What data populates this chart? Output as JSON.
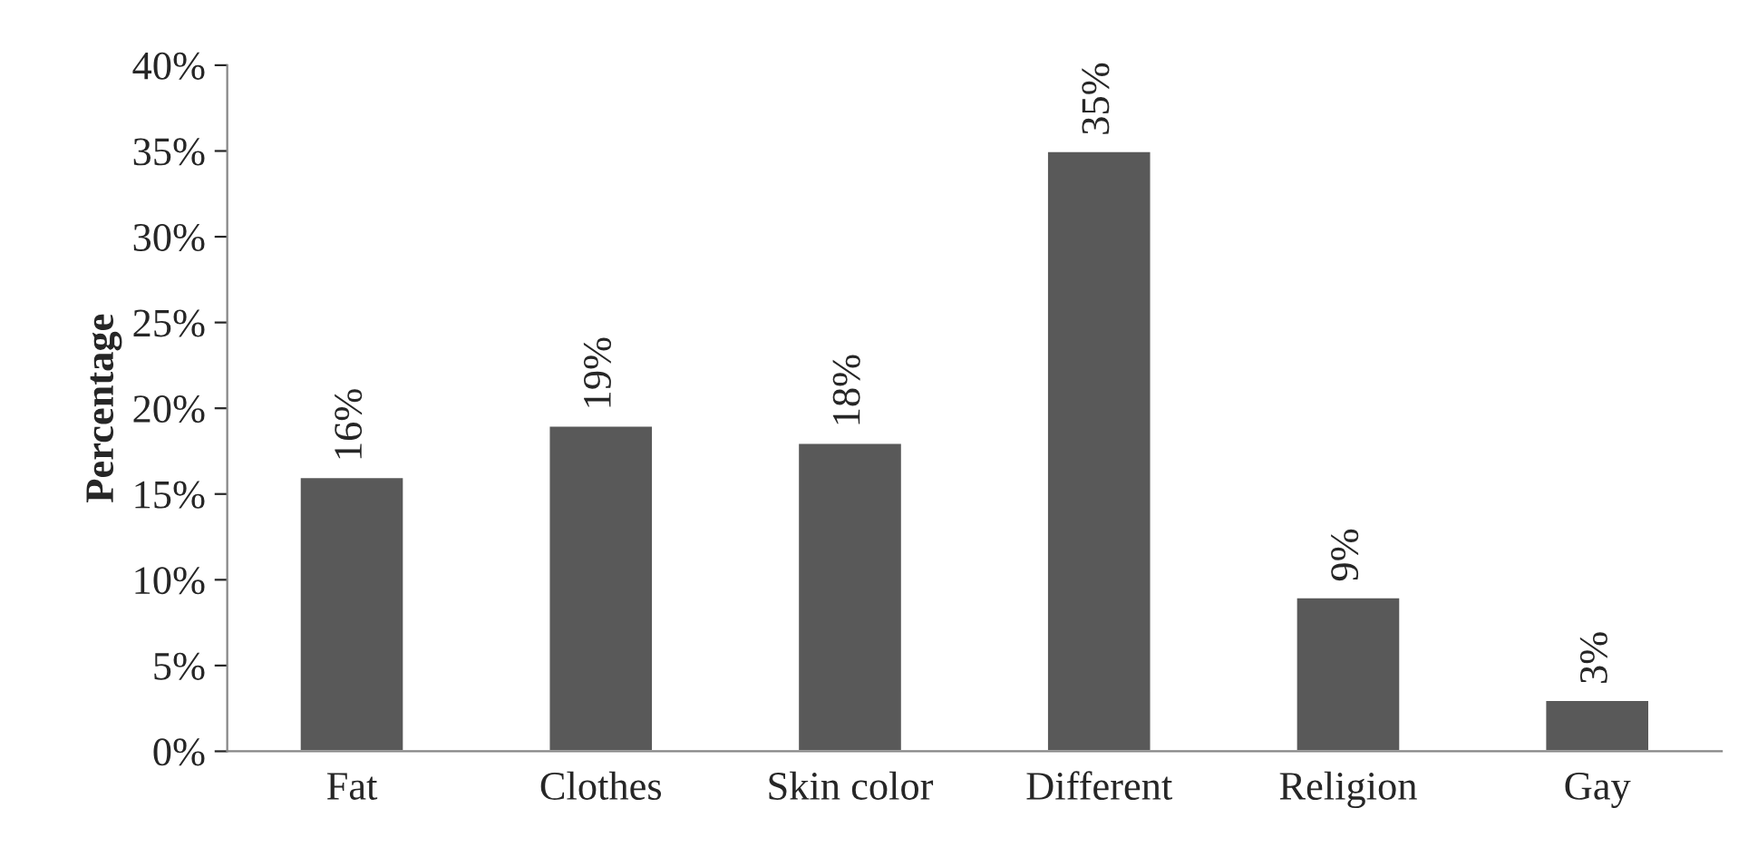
{
  "chart_data": {
    "type": "bar",
    "ylabel": "Percentage",
    "categories": [
      "Fat",
      "Clothes",
      "Skin color",
      "Different",
      "Religion",
      "Gay"
    ],
    "values": [
      16,
      19,
      18,
      35,
      9,
      3
    ],
    "value_labels": [
      "16%",
      "19%",
      "18%",
      "35%",
      "9%",
      "3%"
    ],
    "color": "#595959",
    "ylim": [
      0,
      40
    ],
    "yticks": [
      {
        "value": 0,
        "label": "0%"
      },
      {
        "value": 5,
        "label": "5%"
      },
      {
        "value": 10,
        "label": "10%"
      },
      {
        "value": 15,
        "label": "15%"
      },
      {
        "value": 20,
        "label": "20%"
      },
      {
        "value": 25,
        "label": "25%"
      },
      {
        "value": 30,
        "label": "30%"
      },
      {
        "value": 35,
        "label": "35%"
      },
      {
        "value": 40,
        "label": "40%"
      }
    ],
    "grid": false,
    "legend": false
  }
}
